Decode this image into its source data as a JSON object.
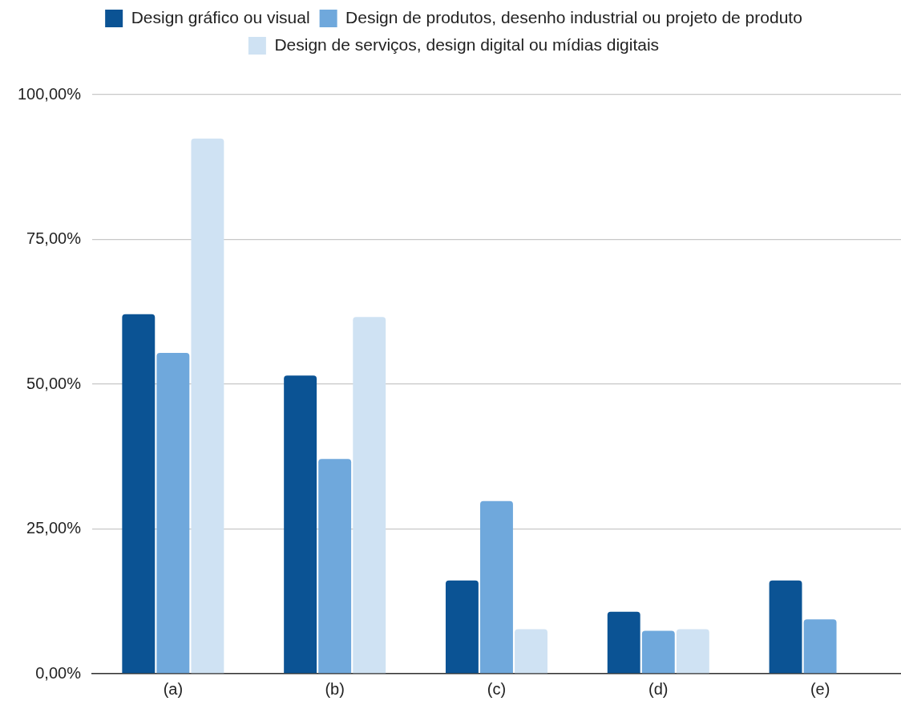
{
  "chart_data": {
    "type": "bar",
    "categories": [
      "(a)",
      "(b)",
      "(c)",
      "(d)",
      "(e)"
    ],
    "series": [
      {
        "name": "Design gráfico ou visual",
        "color": "#0b5394",
        "values": [
          62.1,
          51.5,
          16.1,
          10.7,
          16.1
        ]
      },
      {
        "name": "Design de produtos, desenho industrial ou projeto de produto",
        "color": "#6fa8dc",
        "values": [
          55.4,
          37.1,
          29.8,
          7.4,
          9.4
        ]
      },
      {
        "name": "Design de serviços, design digital ou mídias digitais",
        "color": "#cfe2f3",
        "values": [
          92.4,
          61.6,
          7.7,
          7.7,
          0
        ]
      }
    ],
    "ylim": [
      0,
      100
    ],
    "yticks": [
      {
        "value": 0,
        "label": "0,00%"
      },
      {
        "value": 25,
        "label": "25,00%"
      },
      {
        "value": 50,
        "label": "50,00%"
      },
      {
        "value": 75,
        "label": "75,00%"
      },
      {
        "value": 100,
        "label": "100,00%"
      }
    ],
    "grid": "y",
    "legend": "top"
  }
}
